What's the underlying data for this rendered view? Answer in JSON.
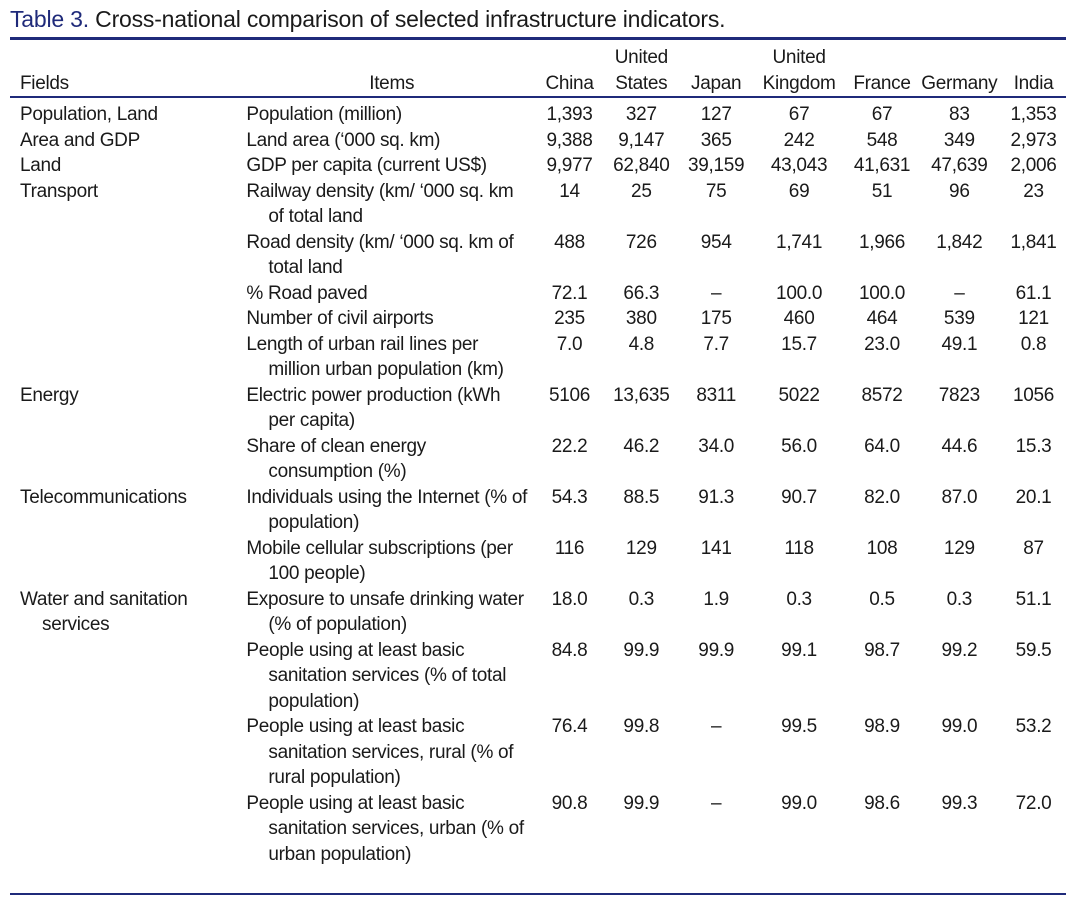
{
  "caption": {
    "label": "Table 3.",
    "text": " Cross-national comparison of selected infrastructure indicators."
  },
  "colors": {
    "accent": "#1f2a7a",
    "text": "#1a1a1a"
  },
  "header": {
    "fields": "Fields",
    "items": "Items",
    "countries": [
      {
        "line1": "",
        "line2": "China"
      },
      {
        "line1": "United",
        "line2": "States"
      },
      {
        "line1": "",
        "line2": "Japan"
      },
      {
        "line1": "United",
        "line2": "Kingdom"
      },
      {
        "line1": "",
        "line2": "France"
      },
      {
        "line1": "",
        "line2": "Germany"
      },
      {
        "line1": "",
        "line2": "India"
      }
    ]
  },
  "rows": [
    {
      "field": "Population, Land",
      "item": "Population (million)",
      "values": [
        "1,393",
        "327",
        "127",
        "67",
        "67",
        "83",
        "1,353"
      ]
    },
    {
      "field": "Area and GDP",
      "item": "Land area (‘000 sq. km)",
      "values": [
        "9,388",
        "9,147",
        "365",
        "242",
        "548",
        "349",
        "2,973"
      ]
    },
    {
      "field": "Land",
      "item": "GDP per capita (current US$)",
      "values": [
        "9,977",
        "62,840",
        "39,159",
        "43,043",
        "41,631",
        "47,639",
        "2,006"
      ]
    },
    {
      "field": "Transport",
      "item": "Railway density (km/ ‘000 sq. km of total land",
      "values": [
        "14",
        "25",
        "75",
        "69",
        "51",
        "96",
        "23"
      ]
    },
    {
      "field": "",
      "item": "Road density (km/ ‘000 sq. km of total land",
      "values": [
        "488",
        "726",
        "954",
        "1,741",
        "1,966",
        "1,842",
        "1,841"
      ]
    },
    {
      "field": "",
      "item": "% Road paved",
      "values": [
        "72.1",
        "66.3",
        "–",
        "100.0",
        "100.0",
        "–",
        "61.1"
      ]
    },
    {
      "field": "",
      "item": "Number of civil airports",
      "values": [
        "235",
        "380",
        "175",
        "460",
        "464",
        "539",
        "121"
      ]
    },
    {
      "field": "",
      "item": "Length of urban rail lines per million urban population (km)",
      "values": [
        "7.0",
        "4.8",
        "7.7",
        "15.7",
        "23.0",
        "49.1",
        "0.8"
      ]
    },
    {
      "field": "Energy",
      "item": "Electric power production (kWh per capita)",
      "values": [
        "5106",
        "13,635",
        "8311",
        "5022",
        "8572",
        "7823",
        "1056"
      ]
    },
    {
      "field": "",
      "item": "Share of clean energy consumption (%)",
      "values": [
        "22.2",
        "46.2",
        "34.0",
        "56.0",
        "64.0",
        "44.6",
        "15.3"
      ]
    },
    {
      "field": "Telecommunications",
      "item": "Individuals using the Internet (% of population)",
      "values": [
        "54.3",
        "88.5",
        "91.3",
        "90.7",
        "82.0",
        "87.0",
        "20.1"
      ]
    },
    {
      "field": "",
      "item": "Mobile cellular subscriptions (per 100 people)",
      "values": [
        "116",
        "129",
        "141",
        "118",
        "108",
        "129",
        "87"
      ]
    },
    {
      "field": "Water and sanitation services",
      "item": "Exposure to unsafe drinking water (% of population)",
      "values": [
        "18.0",
        "0.3",
        "1.9",
        "0.3",
        "0.5",
        "0.3",
        "51.1"
      ]
    },
    {
      "field": "",
      "item": "People using at least basic sanitation services (% of total population)",
      "values": [
        "84.8",
        "99.9",
        "99.9",
        "99.1",
        "98.7",
        "99.2",
        "59.5"
      ]
    },
    {
      "field": "",
      "item": "People using at least basic sanitation services, rural (% of rural population)",
      "values": [
        "76.4",
        "99.8",
        "–",
        "99.5",
        "98.9",
        "99.0",
        "53.2"
      ]
    },
    {
      "field": "",
      "item": "People using at least basic sanitation services, urban (% of urban population)",
      "values": [
        "90.8",
        "99.9",
        "–",
        "99.0",
        "98.6",
        "99.3",
        "72.0"
      ]
    }
  ]
}
